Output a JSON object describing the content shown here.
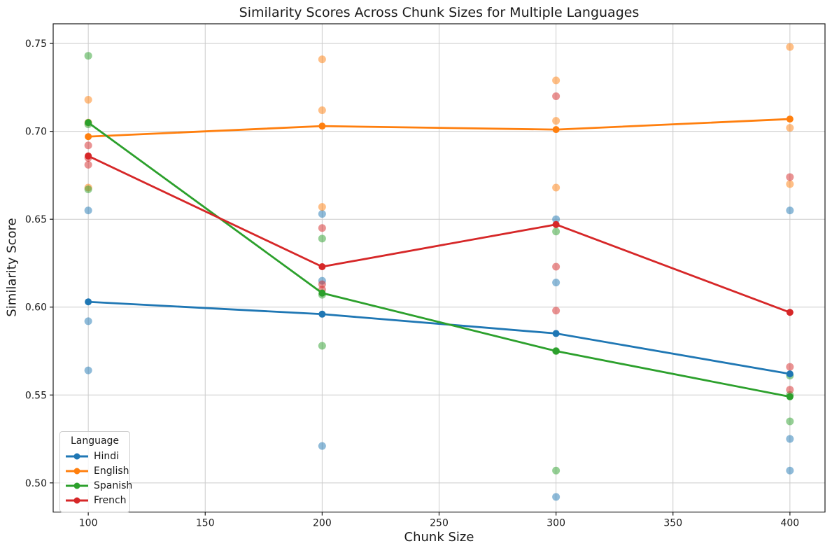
{
  "chart_data": {
    "type": "line",
    "title": "Similarity Scores Across Chunk Sizes for Multiple Languages",
    "xlabel": "Chunk Size",
    "ylabel": "Similarity Score",
    "x": [
      100,
      200,
      300,
      400
    ],
    "xticks": [
      100,
      150,
      200,
      250,
      300,
      350,
      400
    ],
    "xtick_labels": [
      "100",
      "150",
      "200",
      "250",
      "300",
      "350",
      "400"
    ],
    "yticks": [
      0.5,
      0.55,
      0.6,
      0.65,
      0.7,
      0.75
    ],
    "ytick_labels": [
      "0.50",
      "0.55",
      "0.60",
      "0.65",
      "0.70",
      "0.75"
    ],
    "xlim": [
      85,
      415
    ],
    "ylim": [
      0.4834,
      0.7612
    ],
    "grid": true,
    "legend": {
      "title": "Language",
      "position": "lower-left"
    },
    "series": [
      {
        "name": "Hindi",
        "color": "#1f77b4",
        "line_means": [
          0.603,
          0.596,
          0.585,
          0.562
        ],
        "scatter": [
          [
            0.655,
            0.592,
            0.564
          ],
          [
            0.653,
            0.615,
            0.521
          ],
          [
            0.65,
            0.614,
            0.492
          ],
          [
            0.655,
            0.525,
            0.507
          ]
        ]
      },
      {
        "name": "English",
        "color": "#ff7f0e",
        "line_means": [
          0.697,
          0.703,
          0.701,
          0.707
        ],
        "scatter": [
          [
            0.718,
            0.705,
            0.668
          ],
          [
            0.741,
            0.712,
            0.657
          ],
          [
            0.729,
            0.706,
            0.668
          ],
          [
            0.748,
            0.702,
            0.67
          ]
        ]
      },
      {
        "name": "Spanish",
        "color": "#2ca02c",
        "line_means": [
          0.705,
          0.608,
          0.575,
          0.549
        ],
        "scatter": [
          [
            0.743,
            0.704,
            0.667
          ],
          [
            0.639,
            0.607,
            0.578
          ],
          [
            0.643,
            0.575,
            0.507
          ],
          [
            0.561,
            0.55,
            0.535
          ]
        ]
      },
      {
        "name": "French",
        "color": "#d62728",
        "line_means": [
          0.686,
          0.623,
          0.647,
          0.597
        ],
        "scatter": [
          [
            0.692,
            0.685,
            0.681
          ],
          [
            0.645,
            0.613,
            0.61
          ],
          [
            0.72,
            0.623,
            0.598
          ],
          [
            0.674,
            0.566,
            0.553
          ]
        ]
      }
    ],
    "style": {
      "grid_color": "#cccccc",
      "spine_color": "#1a1a1a",
      "text_color": "#1a1a1a",
      "scatter_alpha": 0.5,
      "scatter_radius": 5.5,
      "marker_radius": 5,
      "line_width": 2.8
    }
  }
}
